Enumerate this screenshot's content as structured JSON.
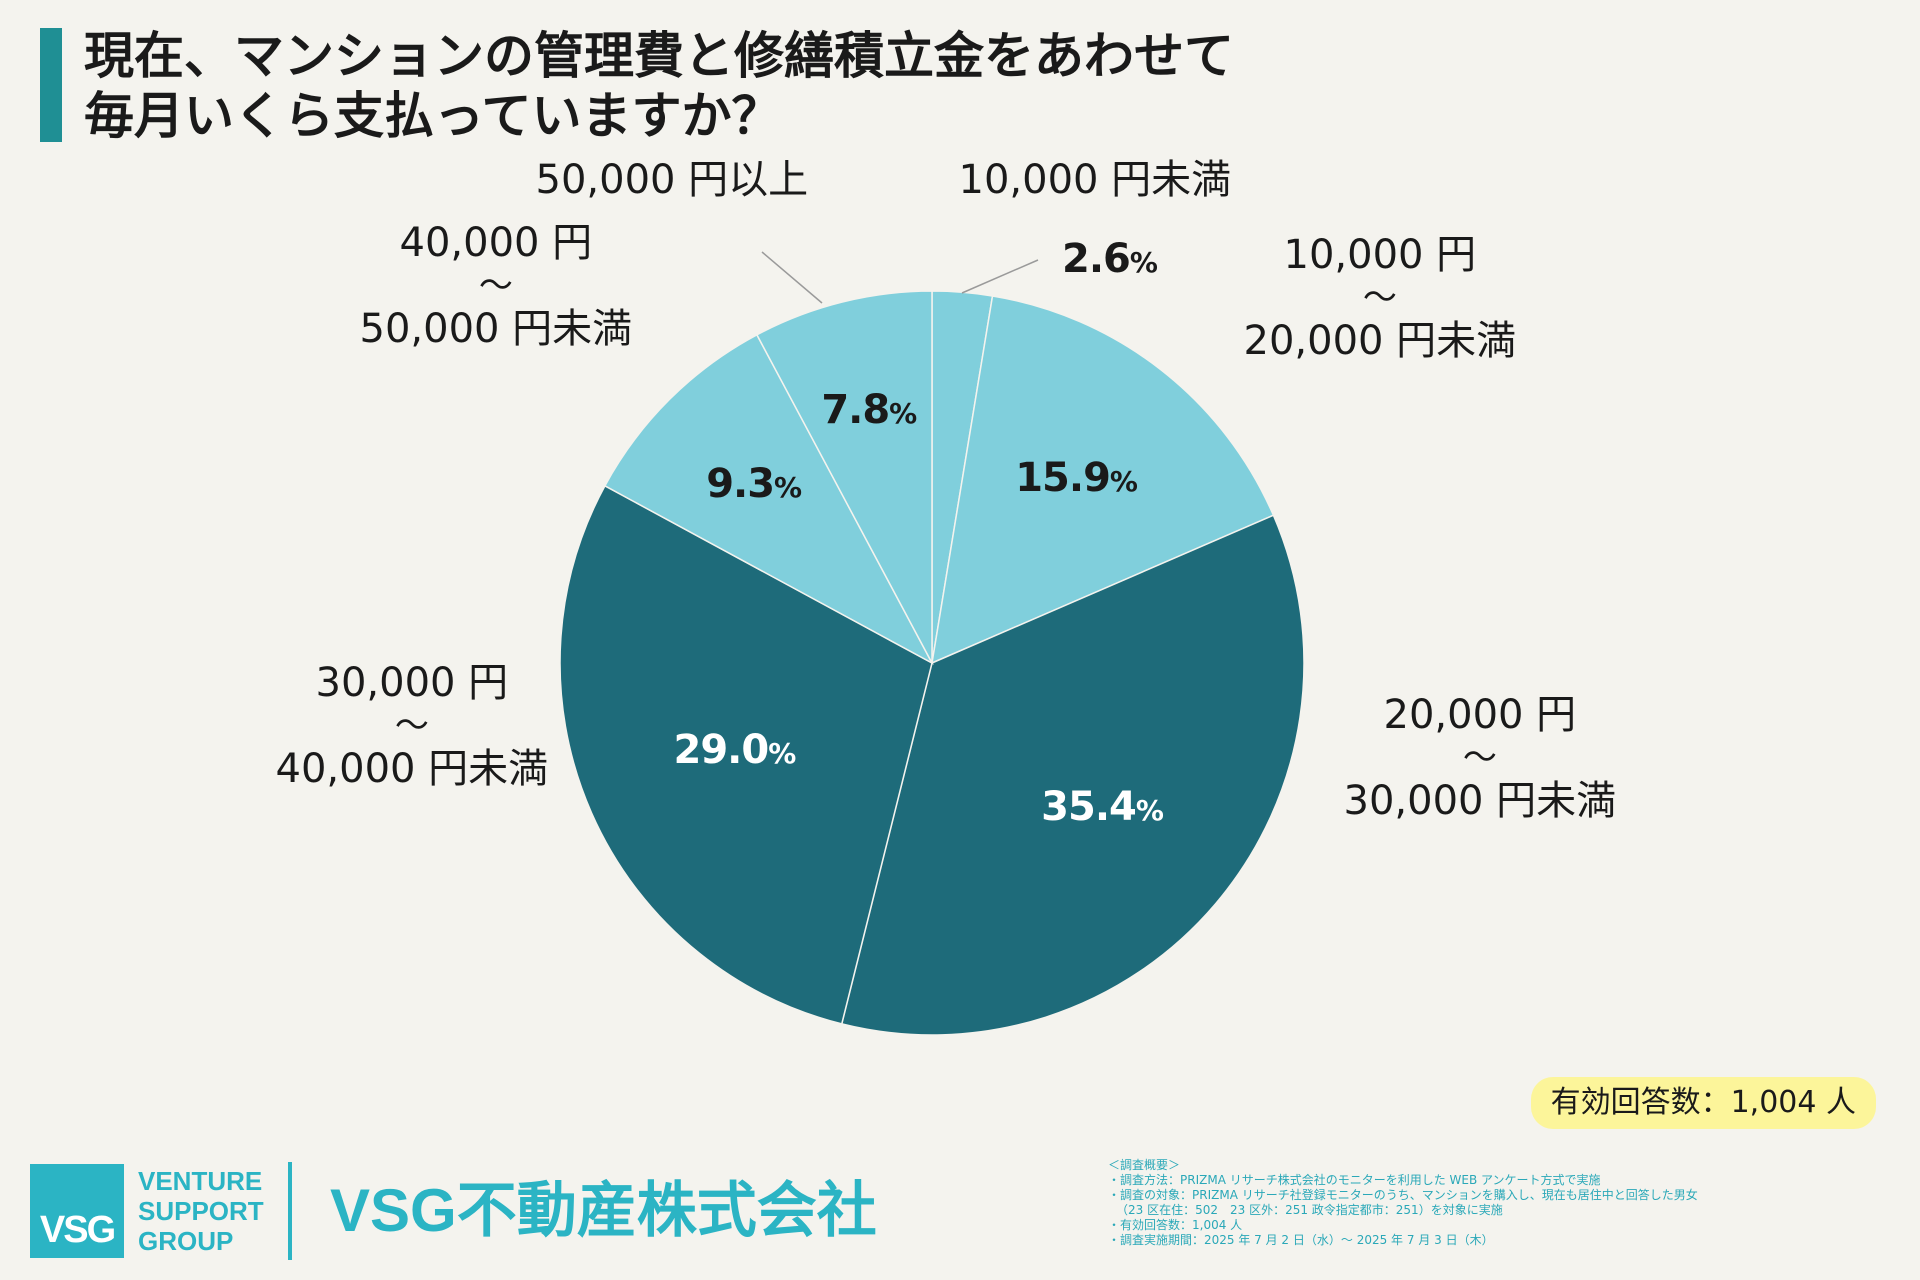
{
  "title": {
    "line1": "現在、マンションの管理費と修繕積立金をあわせて",
    "line2": "毎月いくら支払っていますか？"
  },
  "colors": {
    "accent": "#1f8f94",
    "light_slice": "#80cfdc",
    "dark_slice": "#1e6b7a",
    "brand": "#2bb4c4",
    "highlight": "#fcf59a"
  },
  "chart_data": {
    "type": "pie",
    "unit": "%",
    "slices": [
      {
        "label_lines": [
          "10,000 円未満"
        ],
        "value": 2.6,
        "value_text": "2.6"
      },
      {
        "label_lines": [
          "10,000 円",
          "～",
          "20,000 円未満"
        ],
        "value": 15.9,
        "value_text": "15.9"
      },
      {
        "label_lines": [
          "20,000 円",
          "～",
          "30,000 円未満"
        ],
        "value": 35.4,
        "value_text": "35.4"
      },
      {
        "label_lines": [
          "30,000 円",
          "～",
          "40,000 円未満"
        ],
        "value": 29.0,
        "value_text": "29.0"
      },
      {
        "label_lines": [
          "40,000 円",
          "～",
          "50,000 円未満"
        ],
        "value": 9.3,
        "value_text": "9.3"
      },
      {
        "label_lines": [
          "50,000 円以上"
        ],
        "value": 7.8,
        "value_text": "7.8"
      }
    ]
  },
  "respondents": "有効回答数：1,004 人",
  "logo": {
    "mark": "VSG",
    "words": [
      "VENTURE",
      "SUPPORT",
      "GROUP"
    ],
    "company": "VSG不動産株式会社"
  },
  "survey": {
    "heading": "＜調査概要＞",
    "lines": [
      "・調査方法：PRIZMA リサーチ株式会社のモニターを利用した WEB アンケート方式で実施",
      "・調査の対象：PRIZMA リサーチ社登録モニターのうち、マンションを購入し、現在も居住中と回答した男女",
      "（23 区在住：502　23 区外：251 政令指定都市：251）を対象に実施",
      "・有効回答数：1,004 人",
      "・調査実施期間：2025 年 7 月 2 日（水）～ 2025 年 7 月 3 日（木）"
    ]
  }
}
